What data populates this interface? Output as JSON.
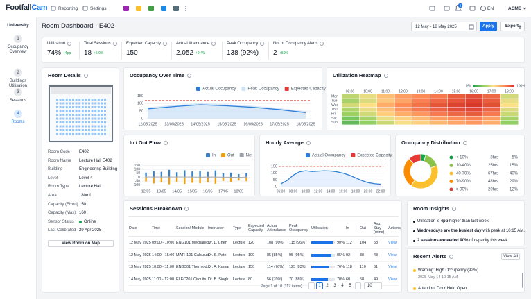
{
  "top_bar": {
    "logo": [
      "Footfall",
      "Cam"
    ],
    "nav": [
      "Reporting",
      "Settings"
    ],
    "notification_count": "2",
    "language": "EN",
    "account": "ACME"
  },
  "sidebar": {
    "title": "University",
    "steps": [
      {
        "number": "1",
        "label": "Occupancy Overview"
      },
      {
        "number": "2",
        "label": "Buildings Utilisation"
      },
      {
        "number": "3",
        "label": "Sessions"
      },
      {
        "number": "4",
        "label": "Rooms",
        "active": true
      }
    ]
  },
  "header": {
    "title": "Room Dashboard - E402",
    "date_range": "12 May - 18 May 2025",
    "apply": "Apply",
    "export": "Export"
  },
  "kpis": [
    {
      "label": "Utilization",
      "value": "74%",
      "delta": "+4pp"
    },
    {
      "label": "Total Sessions",
      "value": "18",
      "delta": "+5.9%"
    },
    {
      "label": "Expected Capacity",
      "value": "150"
    },
    {
      "label": "Actual Attendance",
      "value": "2,052",
      "delta": "+9.4%"
    },
    {
      "label": "Peak Occupancy",
      "value": "138 (92%)"
    },
    {
      "label": "No. of Occupancy Alerts",
      "value": "2",
      "delta": "+50%"
    }
  ],
  "room_details": {
    "title": "Room Details",
    "fields": [
      {
        "label": "Room Code",
        "value": "E402"
      },
      {
        "label": "Room Name",
        "value": "Lecture Hall E402"
      },
      {
        "label": "Building",
        "value": "Engineering Building"
      },
      {
        "label": "Level",
        "value": "Level 4"
      },
      {
        "label": "Room Type",
        "value": "Lecture Hall"
      },
      {
        "label": "Area",
        "value": "180m²"
      },
      {
        "label": "Capacity (Fixed)",
        "value": "150"
      },
      {
        "label": "Capacity (Max)",
        "value": "160"
      },
      {
        "label": "Sensor Status",
        "value": "Online",
        "status_color": "#16a34a"
      },
      {
        "label": "Last Calibrated",
        "value": "29 Apr 2025"
      }
    ],
    "button": "View Room on Map"
  },
  "occupancy_over_time": {
    "title": "Occupancy Over Time",
    "type": "line",
    "x": [
      "12/05/2025",
      "13/05/2025",
      "14/05/2025",
      "15/05/2025",
      "16/05/2025",
      "17/05/2025",
      "18/05/2025"
    ],
    "series": [
      {
        "name": "Actual Occupancy",
        "color": "#2f7fd8",
        "values": [
          65,
          80,
          92,
          85,
          75,
          60,
          40
        ]
      },
      {
        "name": "Peak Occupancy",
        "color": "#cfe3f7",
        "values": [
          75,
          90,
          102,
          95,
          85,
          70,
          50
        ]
      }
    ],
    "expected": {
      "name": "Expected Capacity",
      "color": "#e53935",
      "value": 120
    },
    "ylim": [
      0,
      170
    ],
    "yticks": [
      0,
      50,
      100,
      150
    ]
  },
  "utilization_heatmap": {
    "title": "Utilization Heatmap",
    "type": "heatmap",
    "columns": [
      "09:00",
      "10:00",
      "11:00",
      "12:00",
      "13:00",
      "14:00",
      "15:00",
      "16:00",
      "17:00",
      "18:00"
    ],
    "rows": [
      "Mon",
      "Tue",
      "Wed",
      "Thu",
      "Fri",
      "Sat",
      "Sun"
    ],
    "values": [
      [
        35,
        45,
        60,
        70,
        75,
        80,
        88,
        92,
        85,
        40
      ],
      [
        30,
        42,
        58,
        68,
        78,
        85,
        90,
        95,
        88,
        45
      ],
      [
        40,
        50,
        65,
        75,
        82,
        90,
        95,
        98,
        92,
        50
      ],
      [
        32,
        45,
        60,
        72,
        80,
        86,
        92,
        94,
        86,
        42
      ],
      [
        28,
        40,
        55,
        65,
        72,
        80,
        85,
        88,
        80,
        38
      ],
      [
        20,
        30,
        45,
        55,
        62,
        70,
        75,
        78,
        70,
        30
      ],
      [
        15,
        25,
        38,
        48,
        55,
        62,
        68,
        72,
        65,
        25
      ]
    ],
    "scale": [
      {
        "value": 0,
        "label": "0%"
      },
      {
        "value": 100,
        "label": "100%"
      }
    ],
    "colors": [
      "#1a9850",
      "#91cf60",
      "#fee08b",
      "#fc8d59",
      "#d73027"
    ]
  },
  "in_out_flow": {
    "title": "In / Out Flow",
    "type": "bar",
    "categories": [
      "12/05",
      null,
      "13/05",
      null,
      "14/05",
      null,
      "15/05",
      null,
      "16/05",
      null,
      "17/05",
      null,
      "18/05",
      null
    ],
    "series": [
      {
        "name": "In",
        "color": "#3b82c4",
        "values": [
          60,
          85,
          70,
          95,
          65,
          90,
          75,
          80,
          70,
          88,
          50,
          60,
          40,
          55
        ]
      },
      {
        "name": "Out",
        "color": "#f59e0b",
        "values": [
          -55,
          -80,
          -65,
          -90,
          -60,
          -85,
          -70,
          -78,
          -66,
          -84,
          -48,
          -58,
          -42,
          -50
        ]
      },
      {
        "name": "Net",
        "color": "#9aa0a6",
        "values": [
          5,
          5,
          5,
          5,
          5,
          5,
          5,
          2,
          4,
          4,
          2,
          2,
          -2,
          5
        ]
      }
    ],
    "ylim": [
      -120,
      165
    ],
    "yticks": [
      -100,
      -50,
      0,
      50,
      100,
      150
    ]
  },
  "hourly_average": {
    "title": "Hourly Average",
    "type": "line",
    "x": [
      6,
      7,
      8,
      9,
      10,
      11,
      12,
      13,
      14,
      15,
      16,
      17,
      18,
      19,
      20,
      21,
      22
    ],
    "series": [
      {
        "name": "Actual Occupancy",
        "color": "#2f7fd8",
        "values": [
          20,
          45,
          85,
          110,
          118,
          112,
          115,
          118,
          116,
          110,
          100,
          85,
          65,
          45,
          30,
          22,
          18
        ]
      }
    ],
    "expected": {
      "name": "Expected Capacity",
      "color": "#e53935",
      "value": 150
    },
    "xlim": [
      6,
      22
    ],
    "xticks": [
      {
        "value": 6,
        "label": "06:00"
      },
      {
        "value": 8,
        "label": "08:00"
      },
      {
        "value": 10,
        "label": "10:00"
      },
      {
        "value": 12,
        "label": "12:00"
      },
      {
        "value": 14,
        "label": "14:00"
      },
      {
        "value": 16,
        "label": "16:00"
      },
      {
        "value": 18,
        "label": "18:00"
      },
      {
        "value": 20,
        "label": "20:00"
      },
      {
        "value": 22,
        "label": "22:00"
      }
    ],
    "ylim": [
      0,
      165
    ],
    "yticks": [
      0,
      50,
      100,
      150
    ]
  },
  "occupancy_distribution": {
    "title": "Occupancy Distribution",
    "type": "pie",
    "categories": [
      "< 10%",
      "10-40%",
      "40-70%",
      "70-90%",
      "> 90%"
    ],
    "values": [
      8,
      25,
      67,
      48,
      20
    ],
    "value_labels": [
      "8hrs",
      "25hrs",
      "67hrs",
      "48hrs",
      "20hrs"
    ],
    "percent_labels": [
      "5%",
      "15%",
      "40%",
      "29%",
      "12%"
    ],
    "colors": [
      "#16a34a",
      "#8bc34a",
      "#fbc02d",
      "#fb8c00",
      "#e53935"
    ]
  },
  "sessions_breakdown": {
    "title": "Sessions Breakdown",
    "columns": [
      "Date",
      "Time",
      "Session/ Module",
      "Instructor",
      "Type",
      "Expected Capacity",
      "Actual Attendance",
      "Peak Occupancy",
      "Utilisation",
      "In",
      "Out",
      "Avg. Stay (mins)",
      "Actions"
    ],
    "rows": [
      [
        "12 May 2025",
        "09:00 - 10:00",
        "ENG101 Mechanics",
        "Dr. L. Chen",
        "Lecture",
        "120",
        "108 (90%)",
        "115 (96%)",
        {
          "value": 90,
          "label": "90%"
        },
        "112",
        "104",
        "53",
        "View"
      ],
      [
        "12 May 2025",
        "14:00 - 15:00",
        "MATH101 Calculus",
        "Dr. S. Patel",
        "Lecture",
        "100",
        "85 (85%)",
        "95 (95%)",
        {
          "value": 85,
          "label": "85%"
        },
        "92",
        "88",
        "48",
        "View"
      ],
      [
        "13 May 2025",
        "10:00 - 11:00",
        "ENG301 Thermod...",
        "Dr. A. Kumar",
        "Lecture",
        "150",
        "114 (76%)",
        "125 (83%)",
        {
          "value": 76,
          "label": "76%"
        },
        "118",
        "110",
        "61",
        "View"
      ],
      [
        "14 May 2025",
        "11:00 - 12:00",
        "ELEC201 Circuits",
        "Dr. B. Singh",
        "Lecture",
        "80",
        "56 (70%)",
        "70 (88%)",
        {
          "value": 70,
          "label": "70%"
        },
        "60",
        "58",
        "49",
        "View"
      ]
    ],
    "page_info": "Page 1 of 10 (117 items)",
    "pages": [
      "1",
      "2",
      "3",
      "4",
      "5"
    ],
    "page_size": "10"
  },
  "room_insights": {
    "title": "Room Insights",
    "items": [
      [
        {
          "text": "Utilisation is "
        },
        {
          "text": "4pp",
          "bold": true
        },
        {
          "text": " higher than last week."
        }
      ],
      [
        {
          "text": "Wednesdays are the busiest day",
          "bold": true
        },
        {
          "text": " with peak at 10:15 AM."
        }
      ],
      [
        {
          "text": "2 sessions exceeded 90%",
          "bold": true
        },
        {
          "text": " of capacity this week."
        }
      ]
    ]
  },
  "recent_alerts": {
    "title": "Recent Alerts",
    "view_all": "View All",
    "items": [
      {
        "title": "Warning: High Occupancy (92%)",
        "time": "2025-May-14 10:15 AM"
      },
      {
        "title": "Attention: Door Held Open"
      }
    ]
  }
}
